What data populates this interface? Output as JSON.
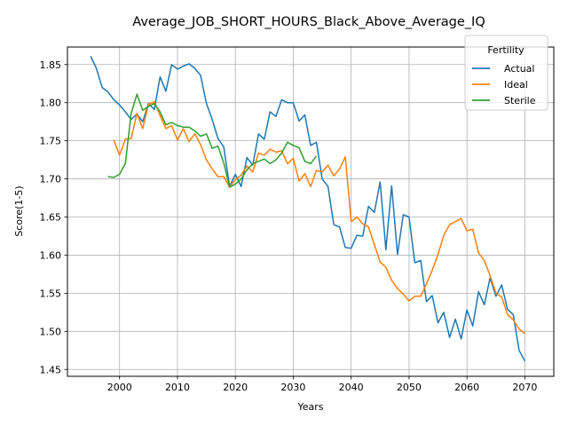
{
  "chart_data": {
    "type": "line",
    "title": "Average_JOB_SHORT_HOURS_Black_Above_Average_IQ",
    "xlabel": "Years",
    "ylabel": "Score(1-5)",
    "xlim": [
      1991,
      2075
    ],
    "ylim": [
      1.441,
      1.873
    ],
    "xticks": [
      2000,
      2010,
      2020,
      2030,
      2040,
      2050,
      2060,
      2070
    ],
    "xtick_labels": [
      "2000",
      "2010",
      "2020",
      "2030",
      "2040",
      "2050",
      "2060",
      "2070"
    ],
    "yticks": [
      1.45,
      1.5,
      1.55,
      1.6,
      1.65,
      1.7,
      1.75,
      1.8,
      1.85
    ],
    "ytick_labels": [
      "1.45",
      "1.50",
      "1.55",
      "1.60",
      "1.65",
      "1.70",
      "1.75",
      "1.80",
      "1.85"
    ],
    "grid": true,
    "legend": {
      "title": "Fertility",
      "placement": "top-right"
    },
    "series": [
      {
        "name": "Actual",
        "color": "#1f77b4",
        "x": [
          1995,
          1996,
          1997,
          1998,
          1999,
          2000,
          2001,
          2002,
          2003,
          2004,
          2005,
          2006,
          2007,
          2008,
          2009,
          2010,
          2011,
          2012,
          2013,
          2014,
          2015,
          2016,
          2017,
          2018,
          2019,
          2020,
          2021,
          2022,
          2023,
          2024,
          2025,
          2026,
          2027,
          2028,
          2029,
          2030,
          2031,
          2032,
          2033,
          2034,
          2035,
          2036,
          2037,
          2038,
          2039,
          2040,
          2041,
          2042,
          2043,
          2044,
          2045,
          2046,
          2047,
          2048,
          2049,
          2050,
          2051,
          2052,
          2053,
          2054,
          2055,
          2056,
          2057,
          2058,
          2059,
          2060,
          2061,
          2062,
          2063,
          2064,
          2065,
          2066,
          2067,
          2068,
          2069,
          2070
        ],
        "y": [
          1.861,
          1.845,
          1.82,
          1.814,
          1.804,
          1.797,
          1.788,
          1.778,
          1.785,
          1.775,
          1.799,
          1.791,
          1.834,
          1.815,
          1.85,
          1.844,
          1.848,
          1.851,
          1.845,
          1.836,
          1.799,
          1.778,
          1.753,
          1.742,
          1.69,
          1.706,
          1.69,
          1.728,
          1.718,
          1.759,
          1.752,
          1.788,
          1.782,
          1.804,
          1.8,
          1.8,
          1.776,
          1.784,
          1.744,
          1.748,
          1.7,
          1.69,
          1.64,
          1.637,
          1.61,
          1.609,
          1.626,
          1.625,
          1.664,
          1.656,
          1.696,
          1.607,
          1.691,
          1.601,
          1.653,
          1.65,
          1.59,
          1.593,
          1.539,
          1.547,
          1.511,
          1.525,
          1.492,
          1.516,
          1.49,
          1.528,
          1.507,
          1.552,
          1.535,
          1.57,
          1.546,
          1.561,
          1.529,
          1.522,
          1.475,
          1.461
        ]
      },
      {
        "name": "Ideal",
        "color": "#ff7f0e",
        "x": [
          1999,
          2000,
          2001,
          2002,
          2003,
          2004,
          2005,
          2006,
          2007,
          2008,
          2009,
          2010,
          2011,
          2012,
          2013,
          2014,
          2015,
          2016,
          2017,
          2018,
          2019,
          2020,
          2021,
          2022,
          2023,
          2024,
          2025,
          2026,
          2027,
          2028,
          2029,
          2030,
          2031,
          2032,
          2033,
          2034,
          2035,
          2036,
          2037,
          2038,
          2039,
          2040,
          2041,
          2042,
          2043,
          2044,
          2045,
          2046,
          2047,
          2048,
          2049,
          2050,
          2051,
          2052,
          2053,
          2054,
          2055,
          2056,
          2057,
          2058,
          2059,
          2060,
          2061,
          2062,
          2063,
          2064,
          2065,
          2066,
          2067,
          2068,
          2069,
          2070
        ],
        "y": [
          1.751,
          1.731,
          1.752,
          1.753,
          1.786,
          1.766,
          1.798,
          1.801,
          1.783,
          1.766,
          1.77,
          1.751,
          1.766,
          1.749,
          1.759,
          1.745,
          1.725,
          1.713,
          1.703,
          1.703,
          1.689,
          1.699,
          1.705,
          1.717,
          1.709,
          1.734,
          1.731,
          1.739,
          1.735,
          1.737,
          1.72,
          1.727,
          1.697,
          1.707,
          1.69,
          1.711,
          1.709,
          1.718,
          1.704,
          1.713,
          1.729,
          1.644,
          1.65,
          1.641,
          1.637,
          1.614,
          1.591,
          1.584,
          1.567,
          1.556,
          1.549,
          1.54,
          1.546,
          1.546,
          1.562,
          1.58,
          1.601,
          1.626,
          1.64,
          1.644,
          1.648,
          1.632,
          1.634,
          1.603,
          1.593,
          1.573,
          1.55,
          1.545,
          1.522,
          1.515,
          1.503,
          1.497
        ]
      },
      {
        "name": "Sterile",
        "color": "#2ca02c",
        "x": [
          1998,
          1999,
          2000,
          2001,
          2002,
          2003,
          2004,
          2005,
          2006,
          2007,
          2008,
          2009,
          2010,
          2011,
          2012,
          2013,
          2014,
          2015,
          2016,
          2017,
          2018,
          2019,
          2020,
          2021,
          2022,
          2023,
          2024,
          2025,
          2026,
          2027,
          2028,
          2029,
          2030,
          2031,
          2032,
          2033,
          2034
        ],
        "y": [
          1.703,
          1.702,
          1.706,
          1.72,
          1.786,
          1.811,
          1.79,
          1.795,
          1.799,
          1.788,
          1.771,
          1.774,
          1.77,
          1.768,
          1.768,
          1.763,
          1.756,
          1.759,
          1.74,
          1.743,
          1.721,
          1.689,
          1.693,
          1.7,
          1.712,
          1.72,
          1.723,
          1.726,
          1.72,
          1.725,
          1.734,
          1.748,
          1.744,
          1.741,
          1.723,
          1.72,
          1.73
        ]
      }
    ]
  }
}
